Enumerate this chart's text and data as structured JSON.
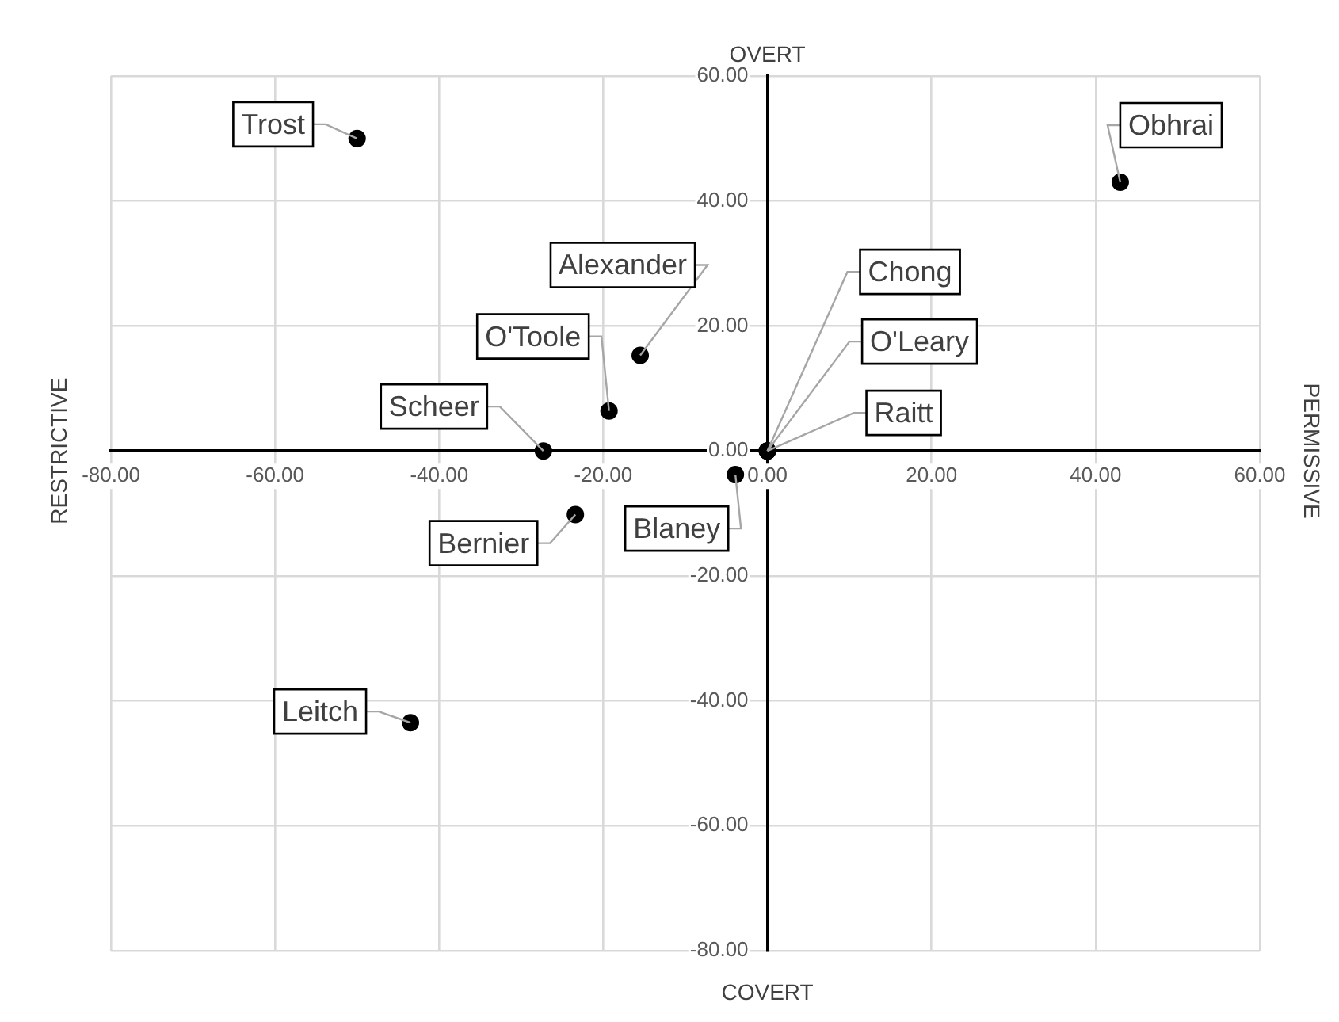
{
  "chart_data": {
    "type": "scatter",
    "title": "OVERT",
    "xlabel": "COVERT",
    "ylabel": "RESTRICTIVE",
    "y2label": "PERMISSIVE",
    "xlim": [
      -80,
      60
    ],
    "ylim": [
      -80,
      60
    ],
    "xticks": [
      {
        "value": -80,
        "label": "-80.00"
      },
      {
        "value": -60,
        "label": "-60.00"
      },
      {
        "value": -40,
        "label": "-40.00"
      },
      {
        "value": -20,
        "label": "-20.00"
      },
      {
        "value": 0,
        "label": "0.00"
      },
      {
        "value": 20,
        "label": "20.00"
      },
      {
        "value": 40,
        "label": "40.00"
      },
      {
        "value": 60,
        "label": "60.00"
      }
    ],
    "yticks": [
      {
        "value": -80,
        "label": "-80.00"
      },
      {
        "value": -60,
        "label": "-60.00"
      },
      {
        "value": -40,
        "label": "-40.00"
      },
      {
        "value": -20,
        "label": "-20.00"
      },
      {
        "value": 0,
        "label": "0.00"
      },
      {
        "value": 20,
        "label": "20.00"
      },
      {
        "value": 40,
        "label": "40.00"
      },
      {
        "value": 60,
        "label": "60.00"
      }
    ],
    "grid": true,
    "legend": false,
    "marker": "circle",
    "series": [
      {
        "name": "Trost",
        "color": "#000000",
        "x": [
          -50
        ],
        "values": [
          50
        ]
      },
      {
        "name": "Obhrai",
        "color": "#000000",
        "x": [
          43
        ],
        "values": [
          43
        ]
      },
      {
        "name": "Alexander",
        "color": "#000000",
        "x": [
          -15.5
        ],
        "values": [
          15.3
        ]
      },
      {
        "name": "O'Toole",
        "color": "#000000",
        "x": [
          -19.3
        ],
        "values": [
          6.4
        ]
      },
      {
        "name": "Scheer",
        "color": "#000000",
        "x": [
          -27.3
        ],
        "values": [
          0
        ]
      },
      {
        "name": "Bernier",
        "color": "#000000",
        "x": [
          -23.4
        ],
        "values": [
          -10.2
        ]
      },
      {
        "name": "Blaney",
        "color": "#000000",
        "x": [
          -3.9
        ],
        "values": [
          -3.8
        ]
      },
      {
        "name": "Leitch",
        "color": "#000000",
        "x": [
          -43.5
        ],
        "values": [
          -43.5
        ]
      },
      {
        "name": "Chong",
        "color": "#000000",
        "x": [
          0
        ],
        "values": [
          0
        ]
      },
      {
        "name": "O'Leary",
        "color": "#000000",
        "x": [
          0
        ],
        "values": [
          0
        ]
      },
      {
        "name": "Raitt",
        "color": "#000000",
        "x": [
          0
        ],
        "values": [
          0
        ]
      }
    ]
  }
}
